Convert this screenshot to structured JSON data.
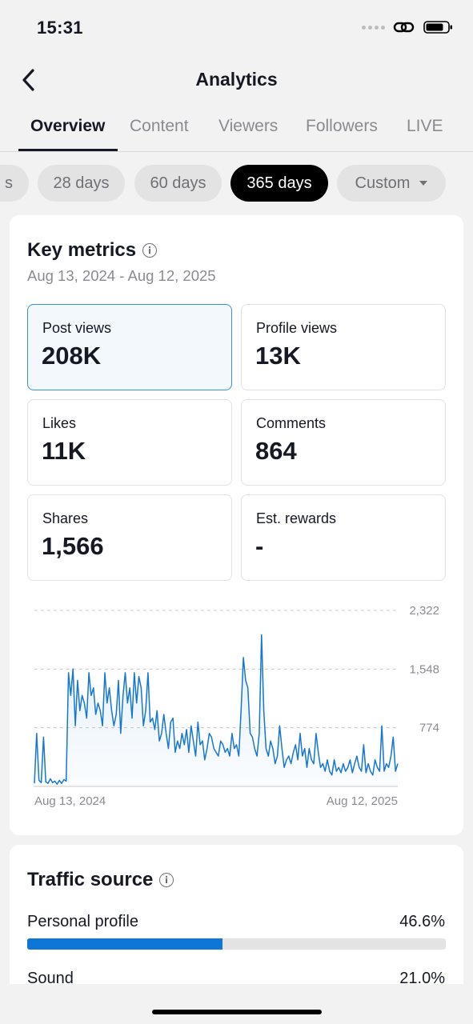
{
  "status_bar": {
    "time": "15:31"
  },
  "header": {
    "title": "Analytics"
  },
  "tabs": [
    {
      "label": "Overview",
      "active": true
    },
    {
      "label": "Content"
    },
    {
      "label": "Viewers"
    },
    {
      "label": "Followers"
    },
    {
      "label": "LIVE"
    }
  ],
  "date_chips": [
    {
      "label": "s"
    },
    {
      "label": "28 days"
    },
    {
      "label": "60 days"
    },
    {
      "label": "365 days",
      "active": true
    },
    {
      "label": "Custom"
    }
  ],
  "key_metrics": {
    "title": "Key metrics",
    "date_range": "Aug 13, 2024 - Aug 12, 2025",
    "items": [
      {
        "label": "Post views",
        "value": "208K",
        "selected": true
      },
      {
        "label": "Profile views",
        "value": "13K"
      },
      {
        "label": "Likes",
        "value": "11K"
      },
      {
        "label": "Comments",
        "value": "864"
      },
      {
        "label": "Shares",
        "value": "1,566"
      },
      {
        "label": "Est. rewards",
        "value": "-"
      }
    ]
  },
  "chart_data": {
    "type": "area",
    "title": "",
    "x_start": "Aug 13, 2024",
    "x_end": "Aug 12, 2025",
    "y_ticks": [
      "2,322",
      "1,548",
      "774"
    ],
    "ylim": [
      0,
      2322
    ],
    "grid": true,
    "series_color": "#1677d2",
    "series": [
      {
        "values": [
          40,
          700,
          80,
          50,
          650,
          60,
          40,
          100,
          50,
          70,
          30,
          80,
          40,
          90,
          70,
          1500,
          1200,
          1550,
          800,
          1400,
          1000,
          1200,
          1100,
          900,
          1500,
          1200,
          1300,
          950,
          1100,
          1000,
          800,
          1500,
          1100,
          1300,
          1000,
          800,
          950,
          1400,
          700,
          1200,
          1500,
          1100,
          1300,
          900,
          1500,
          1100,
          1450,
          1300,
          800,
          1000,
          1500,
          850,
          900,
          750,
          1000,
          600,
          700,
          950,
          700,
          500,
          850,
          900,
          450,
          600,
          500,
          700,
          550,
          750,
          450,
          800,
          600,
          400,
          850,
          550,
          600,
          350,
          500,
          700,
          650,
          500,
          450,
          400,
          600,
          550,
          450,
          500,
          400,
          700,
          500,
          550,
          400,
          1000,
          1700,
          1400,
          1300,
          700,
          650,
          500,
          400,
          700,
          2000,
          1000,
          500,
          400,
          600,
          500,
          300,
          400,
          800,
          500,
          250,
          350,
          400,
          300,
          450,
          550,
          350,
          700,
          400,
          500,
          250,
          500,
          350,
          300,
          700,
          450,
          250,
          300,
          200,
          350,
          200,
          150,
          350,
          200,
          250,
          180,
          300,
          200,
          250,
          350,
          180,
          300,
          400,
          250,
          200,
          550,
          180,
          300,
          200,
          150,
          350,
          250,
          200,
          800,
          200,
          300,
          250,
          400,
          650,
          200,
          300
        ]
      }
    ]
  },
  "traffic_source": {
    "title": "Traffic source",
    "items": [
      {
        "label": "Personal profile",
        "value": "46.6%",
        "fraction": 0.466
      },
      {
        "label": "Sound",
        "value": "21.0%",
        "fraction": 0.21
      }
    ]
  },
  "colors": {
    "accent": "#0d76d6",
    "text": "#161823",
    "muted": "#8a8b91"
  }
}
